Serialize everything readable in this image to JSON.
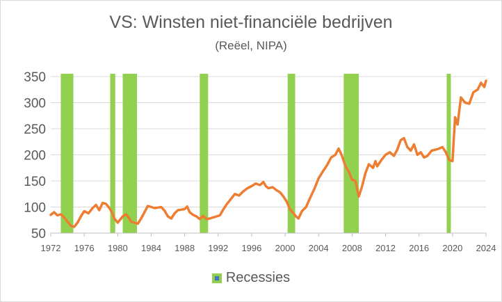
{
  "chart_data": {
    "type": "line",
    "title": "VS: Winsten niet-financiële bedrijven",
    "subtitle": "(Reëel, NIPA)",
    "xlim": [
      1972,
      2024
    ],
    "ylim": [
      50,
      350
    ],
    "x_ticks": [
      "1972",
      "1976",
      "1980",
      "1984",
      "1988",
      "1992",
      "1996",
      "2000",
      "2004",
      "2008",
      "2012",
      "2016",
      "2020",
      "2024"
    ],
    "y_ticks": [
      "50",
      "100",
      "150",
      "200",
      "250",
      "300",
      "350"
    ],
    "grid": "horizontal",
    "legend": {
      "position": "bottom",
      "entries": [
        "Recessies"
      ]
    },
    "recessions": [
      [
        1973.2,
        1974.7
      ],
      [
        1979.1,
        1979.7
      ],
      [
        1980.6,
        1982.3
      ],
      [
        1989.8,
        1990.8
      ],
      [
        2000.3,
        2001.2
      ],
      [
        2007.0,
        2008.8
      ],
      [
        2019.3,
        2019.8
      ]
    ],
    "colors": {
      "line": "#ed7d31",
      "recession": "#92d050",
      "grid": "#d9d9d9",
      "text": "#595959"
    },
    "series": [
      {
        "x": [
          1972.0,
          1972.4,
          1972.8,
          1973.2,
          1973.6,
          1974.0,
          1974.4,
          1974.8,
          1975.2,
          1975.6,
          1976.0,
          1976.5,
          1977.0,
          1977.4,
          1977.8,
          1978.2,
          1978.6,
          1979.0,
          1979.3,
          1979.6,
          1980.0,
          1980.3,
          1980.6,
          1981.0,
          1981.3,
          1981.6,
          1982.0,
          1982.4,
          1982.8,
          1983.2,
          1983.6,
          1984.0,
          1984.4,
          1984.8,
          1985.2,
          1985.6,
          1986.0,
          1986.4,
          1986.8,
          1987.2,
          1987.6,
          1988.0,
          1988.3,
          1988.6,
          1989.0,
          1989.4,
          1989.8,
          1990.2,
          1990.6,
          1991.0,
          1991.4,
          1991.8,
          1992.2,
          1992.6,
          1993.0,
          1993.5,
          1994.0,
          1994.5,
          1995.0,
          1995.5,
          1996.0,
          1996.5,
          1997.0,
          1997.4,
          1997.7,
          1998.0,
          1998.5,
          1999.0,
          1999.4,
          1999.8,
          2000.2,
          2000.6,
          2001.0,
          2001.3,
          2001.6,
          2002.0,
          2002.5,
          2003.0,
          2003.5,
          2004.0,
          2004.5,
          2005.0,
          2005.5,
          2006.0,
          2006.4,
          2006.8,
          2007.2,
          2007.6,
          2008.0,
          2008.4,
          2008.8,
          2009.2,
          2009.6,
          2010.0,
          2010.5,
          2010.8,
          2011.0,
          2011.5,
          2012.0,
          2012.5,
          2013.0,
          2013.4,
          2013.8,
          2014.2,
          2014.6,
          2015.0,
          2015.4,
          2015.8,
          2016.2,
          2016.6,
          2017.0,
          2017.5,
          2018.0,
          2018.4,
          2018.8,
          2019.2,
          2019.6,
          2020.0,
          2020.3,
          2020.6,
          2021.0,
          2021.5,
          2022.0,
          2022.5,
          2023.0,
          2023.4,
          2023.8,
          2024.0
        ],
        "y": [
          85,
          90,
          84,
          86,
          80,
          72,
          64,
          62,
          70,
          82,
          92,
          88,
          98,
          104,
          94,
          108,
          106,
          98,
          90,
          78,
          70,
          76,
          82,
          86,
          80,
          72,
          70,
          68,
          78,
          90,
          102,
          100,
          98,
          99,
          100,
          93,
          82,
          78,
          88,
          94,
          95,
          96,
          101,
          90,
          85,
          82,
          77,
          83,
          77,
          78,
          80,
          82,
          84,
          95,
          105,
          115,
          125,
          122,
          130,
          136,
          140,
          145,
          142,
          148,
          140,
          136,
          138,
          132,
          128,
          120,
          110,
          95,
          88,
          82,
          78,
          92,
          100,
          118,
          135,
          155,
          168,
          180,
          195,
          200,
          212,
          198,
          178,
          168,
          152,
          150,
          120,
          140,
          165,
          182,
          175,
          188,
          178,
          190,
          200,
          205,
          198,
          210,
          228,
          232,
          215,
          208,
          220,
          200,
          205,
          195,
          198,
          208,
          210,
          212,
          215,
          205,
          190,
          188,
          272,
          258,
          310,
          300,
          298,
          320,
          325,
          338,
          330,
          342
        ]
      }
    ]
  }
}
